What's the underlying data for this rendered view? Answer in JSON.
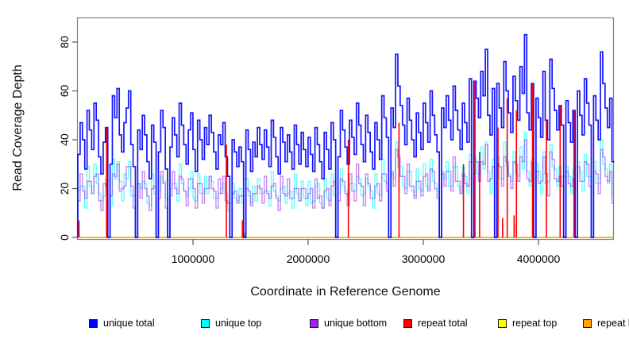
{
  "axes": {
    "ylabel": "Read Coverage Depth",
    "xlabel": "Coordinate in Reference Genome",
    "ytick_labels": [
      "0",
      "20",
      "40",
      "60",
      "80"
    ],
    "yticks": [
      0,
      20,
      40,
      60,
      80
    ],
    "xtick_labels": [
      "1000000",
      "2000000",
      "3000000",
      "4000000"
    ],
    "xticks": [
      1000000,
      2000000,
      3000000,
      4000000
    ],
    "xlim": [
      0,
      4650000
    ],
    "ylim": [
      0,
      90
    ],
    "frame_color": "#808080",
    "tick_color": "#555555"
  },
  "legend": {
    "items": [
      {
        "label": "unique total",
        "color": "#0000FF"
      },
      {
        "label": "unique top",
        "color": "#00FFFF"
      },
      {
        "label": "unique bottom",
        "color": "#A020F0"
      },
      {
        "label": "repeat total",
        "color": "#FF0000"
      },
      {
        "label": "repeat top",
        "color": "#FFFF00"
      },
      {
        "label": "repeat bottom",
        "color": "#FFA500"
      }
    ]
  },
  "chart_data": {
    "type": "line",
    "step_interpolation": true,
    "title": "",
    "xlabel": "Coordinate in Reference Genome",
    "ylabel": "Read Coverage Depth",
    "x_start": 0,
    "x_step": 20000,
    "n_windows": 233,
    "xlim": [
      0,
      4650000
    ],
    "ylim": [
      0,
      90
    ],
    "grid": false,
    "legend_position": "bottom",
    "series": [
      {
        "name": "unique total",
        "color": "#0000FF",
        "values": [
          34,
          47,
          40,
          28,
          52,
          44,
          36,
          55,
          48,
          33,
          26,
          39,
          45,
          0,
          30,
          58,
          49,
          61,
          42,
          35,
          47,
          53,
          60,
          38,
          29,
          0,
          44,
          36,
          50,
          42,
          31,
          24,
          46,
          39,
          0,
          35,
          52,
          45,
          28,
          0,
          37,
          49,
          42,
          33,
          55,
          46,
          38,
          30,
          44,
          51,
          36,
          27,
          48,
          40,
          32,
          45,
          38,
          50,
          43,
          35,
          28,
          42,
          38,
          47,
          33,
          25,
          0,
          40,
          35,
          29,
          37,
          31,
          0,
          44,
          36,
          27,
          39,
          33,
          45,
          38,
          32,
          44,
          37,
          29,
          48,
          41,
          33,
          26,
          45,
          39,
          31,
          42,
          35,
          28,
          46,
          38,
          30,
          43,
          36,
          29,
          41,
          34,
          27,
          45,
          38,
          31,
          24,
          43,
          36,
          28,
          47,
          40,
          0,
          33,
          52,
          44,
          37,
          30,
          48,
          41,
          34,
          55,
          46,
          38,
          31,
          50,
          43,
          35,
          28,
          47,
          40,
          32,
          58,
          49,
          41,
          0,
          53,
          45,
          75,
          62,
          54,
          46,
          38,
          57,
          48,
          40,
          33,
          51,
          43,
          36,
          55,
          47,
          39,
          60,
          50,
          42,
          35,
          0,
          53,
          45,
          58,
          48,
          40,
          62,
          52,
          44,
          36,
          55,
          47,
          39,
          65,
          0,
          64,
          57,
          49,
          68,
          58,
          77,
          50,
          42,
          61,
          0,
          63,
          53,
          45,
          72,
          60,
          51,
          43,
          66,
          56,
          48,
          70,
          59,
          83,
          51,
          44,
          63,
          0,
          57,
          49,
          41,
          68,
          48,
          40,
          73,
          61,
          52,
          44,
          54,
          46,
          0,
          56,
          47,
          39,
          52,
          0,
          60,
          50,
          42,
          65,
          55,
          46,
          0,
          58,
          48,
          40,
          76,
          63,
          53,
          45,
          57,
          31
        ]
      },
      {
        "name": "unique top",
        "color": "#00FFFF",
        "values": [
          19,
          21,
          21,
          12,
          29,
          21,
          18,
          30,
          22,
          18,
          15,
          17,
          24,
          0,
          13,
          32,
          24,
          31,
          23,
          15,
          26,
          24,
          31,
          17,
          17,
          0,
          22,
          20,
          23,
          22,
          14,
          13,
          26,
          18,
          0,
          19,
          25,
          23,
          16,
          0,
          20,
          22,
          22,
          15,
          30,
          22,
          19,
          17,
          20,
          27,
          16,
          15,
          26,
          18,
          18,
          25,
          18,
          25,
          23,
          16,
          16,
          18,
          20,
          22,
          18,
          11,
          0,
          22,
          16,
          15,
          20,
          14,
          0,
          24,
          17,
          14,
          21,
          15,
          24,
          18,
          18,
          19,
          19,
          13,
          27,
          19,
          17,
          15,
          20,
          21,
          14,
          18,
          19,
          12,
          26,
          18,
          15,
          23,
          16,
          13,
          23,
          14,
          15,
          21,
          22,
          14,
          12,
          24,
          16,
          15,
          26,
          17,
          0,
          18,
          28,
          21,
          19,
          17,
          22,
          22,
          19,
          25,
          24,
          17,
          18,
          24,
          21,
          19,
          12,
          26,
          18,
          17,
          32,
          23,
          22,
          0,
          26,
          24,
          39,
          29,
          29,
          21,
          20,
          27,
          27,
          19,
          17,
          28,
          20,
          19,
          30,
          21,
          20,
          32,
          23,
          22,
          19,
          0,
          27,
          24,
          31,
          21,
          21,
          29,
          29,
          21,
          18,
          29,
          25,
          18,
          34,
          0,
          33,
          26,
          26,
          37,
          28,
          39,
          27,
          18,
          32,
          0,
          33,
          24,
          24,
          39,
          29,
          26,
          23,
          35,
          26,
          25,
          37,
          28,
          43,
          27,
          21,
          32,
          0,
          30,
          27,
          18,
          35,
          22,
          23,
          38,
          29,
          28,
          21,
          29,
          25,
          0,
          29,
          25,
          18,
          28,
          0,
          31,
          27,
          19,
          34,
          25,
          25,
          0,
          31,
          22,
          22,
          40,
          30,
          28,
          22,
          30,
          17
        ]
      },
      {
        "name": "unique bottom",
        "color": "#A020F0",
        "values": [
          15,
          26,
          19,
          16,
          23,
          23,
          18,
          25,
          26,
          15,
          11,
          22,
          21,
          0,
          17,
          26,
          25,
          30,
          19,
          20,
          21,
          29,
          29,
          21,
          12,
          0,
          22,
          16,
          27,
          20,
          17,
          11,
          20,
          21,
          0,
          16,
          27,
          22,
          12,
          0,
          17,
          27,
          20,
          18,
          25,
          24,
          19,
          13,
          24,
          24,
          20,
          12,
          22,
          22,
          14,
          20,
          20,
          25,
          20,
          19,
          12,
          24,
          18,
          25,
          15,
          14,
          0,
          18,
          19,
          14,
          17,
          17,
          0,
          20,
          19,
          13,
          18,
          18,
          21,
          20,
          14,
          25,
          18,
          16,
          21,
          22,
          16,
          11,
          25,
          18,
          17,
          24,
          16,
          16,
          20,
          20,
          15,
          20,
          20,
          16,
          18,
          20,
          12,
          24,
          16,
          17,
          12,
          19,
          20,
          13,
          21,
          23,
          0,
          15,
          24,
          23,
          18,
          13,
          26,
          19,
          15,
          30,
          22,
          21,
          13,
          26,
          22,
          16,
          16,
          21,
          22,
          15,
          26,
          26,
          19,
          0,
          27,
          21,
          36,
          33,
          25,
          25,
          18,
          30,
          21,
          21,
          16,
          23,
          23,
          17,
          25,
          26,
          19,
          28,
          27,
          20,
          16,
          0,
          26,
          21,
          27,
          27,
          19,
          33,
          23,
          23,
          18,
          26,
          22,
          21,
          31,
          0,
          31,
          31,
          23,
          31,
          30,
          38,
          23,
          24,
          29,
          0,
          30,
          29,
          21,
          33,
          31,
          25,
          20,
          31,
          30,
          23,
          33,
          31,
          40,
          24,
          23,
          31,
          0,
          27,
          22,
          23,
          33,
          26,
          17,
          35,
          32,
          24,
          23,
          25,
          21,
          0,
          27,
          22,
          21,
          24,
          0,
          29,
          23,
          23,
          31,
          30,
          21,
          0,
          27,
          26,
          18,
          36,
          33,
          25,
          23,
          27,
          14
        ]
      },
      {
        "name": "repeat total",
        "color": "#FF0000",
        "baseline": 0,
        "spikes": [
          [
            0,
            7
          ],
          [
            12,
            45
          ],
          [
            64,
            38
          ],
          [
            71,
            7
          ],
          [
            117,
            40
          ],
          [
            139,
            47
          ],
          [
            167,
            30
          ],
          [
            172,
            64
          ],
          [
            174,
            35
          ],
          [
            182,
            45
          ],
          [
            184,
            8
          ],
          [
            186,
            57
          ],
          [
            189,
            9
          ],
          [
            190,
            52
          ],
          [
            197,
            63
          ],
          [
            203,
            48
          ],
          [
            209,
            54
          ],
          [
            215,
            52
          ]
        ]
      },
      {
        "name": "repeat top",
        "color": "#FFFF00",
        "baseline": 0,
        "spikes": []
      },
      {
        "name": "repeat bottom",
        "color": "#FFA500",
        "baseline": 0,
        "spikes": [
          [
            0,
            4
          ],
          [
            71,
            3
          ],
          [
            72,
            2
          ],
          [
            139,
            2
          ],
          [
            184,
            5
          ],
          [
            189,
            6
          ]
        ]
      }
    ]
  }
}
